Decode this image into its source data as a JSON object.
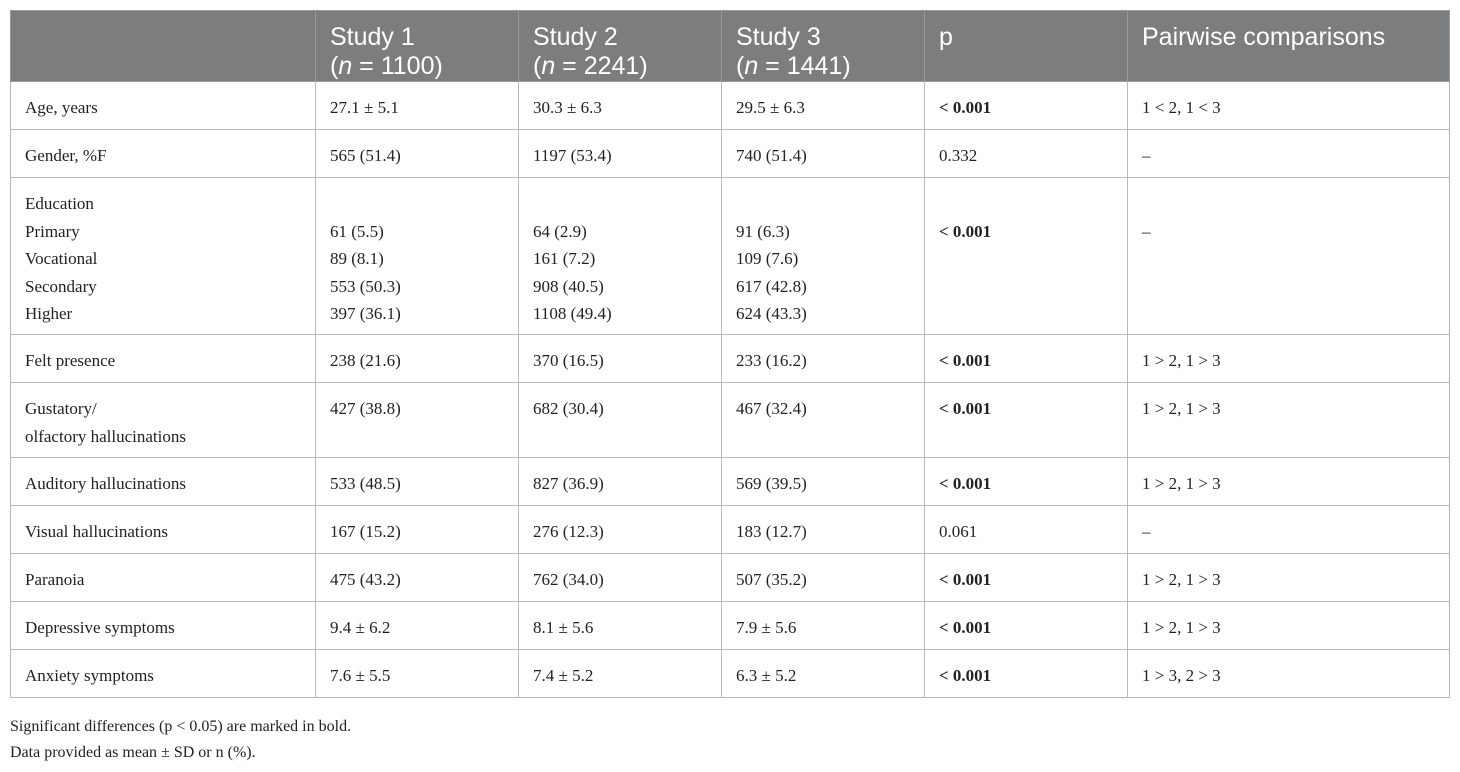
{
  "headers": {
    "c0": "",
    "study1": "Study 1",
    "study1_n_var": "n",
    "study1_n_val": " = 1100)",
    "study2": "Study 2",
    "study2_n_var": "n",
    "study2_n_val": " = 2241)",
    "study3": "Study 3",
    "study3_n_var": "n",
    "study3_n_val": " = 1441)",
    "p": "p",
    "pairwise": "Pairwise comparisons"
  },
  "rows": {
    "age": {
      "label": "Age, years",
      "s1": "27.1 ± 5.1",
      "s2": "30.3 ± 6.3",
      "s3": "29.5 ± 6.3",
      "p": "< 0.001",
      "p_bold": true,
      "pair": "1 < 2, 1 < 3"
    },
    "gender": {
      "label": "Gender, %F",
      "s1": "565 (51.4)",
      "s2": "1197 (53.4)",
      "s3": "740 (51.4)",
      "p": "0.332",
      "p_bold": false,
      "pair": "–"
    },
    "education": {
      "label": "Education",
      "p": "< 0.001",
      "p_bold": true,
      "pair": "–",
      "levels": [
        {
          "label": "Primary",
          "s1": "61 (5.5)",
          "s2": "64 (2.9)",
          "s3": "91 (6.3)"
        },
        {
          "label": "Vocational",
          "s1": "89 (8.1)",
          "s2": "161 (7.2)",
          "s3": "109 (7.6)"
        },
        {
          "label": "Secondary",
          "s1": "553 (50.3)",
          "s2": "908 (40.5)",
          "s3": "617 (42.8)"
        },
        {
          "label": "Higher",
          "s1": "397 (36.1)",
          "s2": "1108 (49.4)",
          "s3": "624 (43.3)"
        }
      ]
    },
    "felt": {
      "label": "Felt presence",
      "s1": "238 (21.6)",
      "s2": "370 (16.5)",
      "s3": "233 (16.2)",
      "p": "< 0.001",
      "p_bold": true,
      "pair": "1 > 2, 1 > 3"
    },
    "gustatory": {
      "label_line1": "Gustatory/",
      "label_line2": "olfactory hallucinations",
      "s1": "427 (38.8)",
      "s2": "682 (30.4)",
      "s3": "467 (32.4)",
      "p": "< 0.001",
      "p_bold": true,
      "pair": "1 > 2, 1 > 3"
    },
    "auditory": {
      "label": "Auditory hallucinations",
      "s1": "533 (48.5)",
      "s2": "827 (36.9)",
      "s3": "569 (39.5)",
      "p": "< 0.001",
      "p_bold": true,
      "pair": "1 > 2, 1 > 3"
    },
    "visual": {
      "label": "Visual hallucinations",
      "s1": "167 (15.2)",
      "s2": "276 (12.3)",
      "s3": "183 (12.7)",
      "p": "0.061",
      "p_bold": false,
      "pair": "–"
    },
    "paranoia": {
      "label": "Paranoia",
      "s1": "475 (43.2)",
      "s2": "762 (34.0)",
      "s3": "507 (35.2)",
      "p": "< 0.001",
      "p_bold": true,
      "pair": "1 > 2, 1 > 3"
    },
    "depressive": {
      "label": "Depressive symptoms",
      "s1": "9.4 ± 6.2",
      "s2": "8.1 ± 5.6",
      "s3": "7.9 ± 5.6",
      "p": "< 0.001",
      "p_bold": true,
      "pair": "1 > 2, 1 > 3"
    },
    "anxiety": {
      "label": "Anxiety symptoms",
      "s1": "7.6 ± 5.5",
      "s2": "7.4 ± 5.2",
      "s3": "6.3 ± 5.2",
      "p": "< 0.001",
      "p_bold": true,
      "pair": "1 > 3, 2 > 3"
    }
  },
  "notes": {
    "line1": "Significant differences (p < 0.05) are marked in bold.",
    "line2": "Data provided as mean ± SD or n (%)."
  },
  "colors": {
    "header_bg": "#7c7d7e",
    "border": "#b9b9b9"
  }
}
